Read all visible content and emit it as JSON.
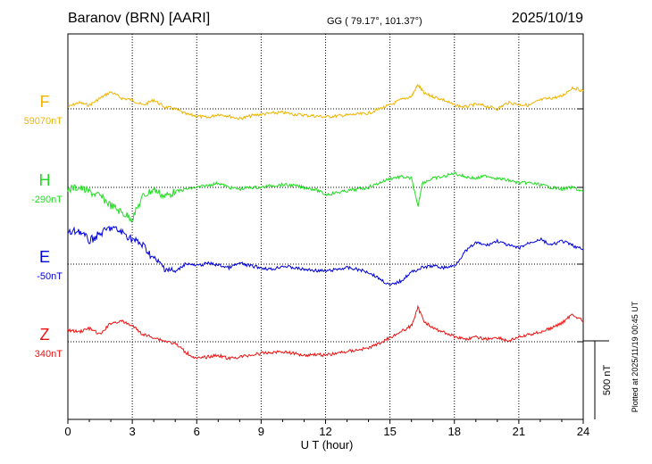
{
  "header": {
    "station": "Baranov (BRN)  [AARI]",
    "coords": "GG ( 79.17°, 101.37°)",
    "date": "2025/10/19"
  },
  "side_note": "Plotted at 2025/11/19 00:45 UT",
  "chart_data": {
    "type": "line",
    "xlabel": "U T (hour)",
    "xlim": [
      0,
      24
    ],
    "x_ticks": [
      "0",
      "3",
      "6",
      "9",
      "12",
      "15",
      "18",
      "21",
      "24"
    ],
    "scale_bar_label": "500 nT",
    "series": [
      {
        "name": "F",
        "baseline_label": "59070nT",
        "color": "#f0b400",
        "points": [
          [
            0,
            120
          ],
          [
            0.5,
            115
          ],
          [
            1,
            118
          ],
          [
            1.5,
            110
          ],
          [
            2,
            103
          ],
          [
            2.5,
            110
          ],
          [
            3,
            112
          ],
          [
            3.5,
            118
          ],
          [
            4,
            112
          ],
          [
            4.5,
            120
          ],
          [
            5,
            122
          ],
          [
            5.5,
            128
          ],
          [
            6,
            130
          ],
          [
            6.5,
            132
          ],
          [
            7,
            128
          ],
          [
            7.5,
            130
          ],
          [
            8,
            133
          ],
          [
            8.5,
            130
          ],
          [
            9,
            128
          ],
          [
            9.5,
            127
          ],
          [
            10,
            126
          ],
          [
            10.5,
            128
          ],
          [
            11,
            129
          ],
          [
            11.5,
            130
          ],
          [
            12,
            131
          ],
          [
            12.5,
            130
          ],
          [
            13,
            129
          ],
          [
            13.5,
            128
          ],
          [
            14,
            127
          ],
          [
            14.5,
            122
          ],
          [
            15,
            118
          ],
          [
            15.5,
            112
          ],
          [
            16,
            108
          ],
          [
            16.3,
            95
          ],
          [
            16.6,
            105
          ],
          [
            17,
            108
          ],
          [
            17.5,
            112
          ],
          [
            18,
            118
          ],
          [
            18.5,
            120
          ],
          [
            19,
            117
          ],
          [
            19.5,
            119
          ],
          [
            20,
            122
          ],
          [
            20.5,
            115
          ],
          [
            21,
            117
          ],
          [
            21.5,
            118
          ],
          [
            22,
            112
          ],
          [
            22.5,
            110
          ],
          [
            23,
            108
          ],
          [
            23.5,
            98
          ],
          [
            24,
            102
          ]
        ]
      },
      {
        "name": "H",
        "baseline_label": "-290nT",
        "color": "#22dd22",
        "points": [
          [
            0,
            212
          ],
          [
            0.5,
            210
          ],
          [
            1,
            215
          ],
          [
            1.5,
            220
          ],
          [
            2,
            230
          ],
          [
            2.5,
            238
          ],
          [
            3,
            245
          ],
          [
            3.5,
            220
          ],
          [
            4,
            212
          ],
          [
            4.5,
            220
          ],
          [
            5,
            215
          ],
          [
            5.5,
            212
          ],
          [
            6,
            210
          ],
          [
            6.5,
            208
          ],
          [
            7,
            205
          ],
          [
            7.5,
            210
          ],
          [
            8,
            212
          ],
          [
            8.5,
            210
          ],
          [
            9,
            210
          ],
          [
            9.5,
            208
          ],
          [
            10,
            207
          ],
          [
            10.5,
            208
          ],
          [
            11,
            210
          ],
          [
            11.5,
            212
          ],
          [
            12,
            218
          ],
          [
            12.5,
            216
          ],
          [
            13,
            214
          ],
          [
            13.5,
            212
          ],
          [
            14,
            210
          ],
          [
            14.5,
            205
          ],
          [
            15,
            200
          ],
          [
            15.5,
            198
          ],
          [
            16,
            200
          ],
          [
            16.3,
            232
          ],
          [
            16.5,
            205
          ],
          [
            17,
            200
          ],
          [
            17.5,
            198
          ],
          [
            18,
            194
          ],
          [
            18.5,
            198
          ],
          [
            19,
            200
          ],
          [
            19.5,
            197
          ],
          [
            20,
            200
          ],
          [
            20.5,
            202
          ],
          [
            21,
            205
          ],
          [
            21.5,
            205
          ],
          [
            22,
            207
          ],
          [
            22.5,
            210
          ],
          [
            23,
            212
          ],
          [
            23.5,
            210
          ],
          [
            24,
            215
          ]
        ]
      },
      {
        "name": "E",
        "baseline_label": "-50nT",
        "color": "#0000dd",
        "points": [
          [
            0,
            262
          ],
          [
            0.5,
            258
          ],
          [
            1,
            270
          ],
          [
            1.5,
            262
          ],
          [
            2,
            255
          ],
          [
            2.5,
            260
          ],
          [
            3,
            268
          ],
          [
            3.5,
            275
          ],
          [
            4,
            290
          ],
          [
            4.5,
            300
          ],
          [
            5,
            305
          ],
          [
            5.5,
            295
          ],
          [
            6,
            298
          ],
          [
            6.5,
            295
          ],
          [
            7,
            297
          ],
          [
            7.5,
            300
          ],
          [
            8,
            295
          ],
          [
            8.5,
            298
          ],
          [
            9,
            300
          ],
          [
            9.5,
            302
          ],
          [
            10,
            298
          ],
          [
            10.5,
            300
          ],
          [
            11,
            302
          ],
          [
            11.5,
            303
          ],
          [
            12,
            304
          ],
          [
            12.5,
            302
          ],
          [
            13,
            300
          ],
          [
            13.5,
            302
          ],
          [
            14,
            305
          ],
          [
            14.5,
            312
          ],
          [
            15,
            320
          ],
          [
            15.5,
            315
          ],
          [
            16,
            305
          ],
          [
            16.5,
            300
          ],
          [
            17,
            298
          ],
          [
            17.5,
            300
          ],
          [
            18,
            298
          ],
          [
            18.5,
            282
          ],
          [
            19,
            272
          ],
          [
            19.5,
            275
          ],
          [
            20,
            270
          ],
          [
            20.5,
            275
          ],
          [
            21,
            278
          ],
          [
            21.5,
            272
          ],
          [
            22,
            268
          ],
          [
            22.5,
            275
          ],
          [
            23,
            270
          ],
          [
            23.5,
            275
          ],
          [
            24,
            280
          ]
        ]
      },
      {
        "name": "Z",
        "baseline_label": "340nT",
        "color": "#ee1111",
        "points": [
          [
            0,
            370
          ],
          [
            0.5,
            372
          ],
          [
            1,
            368
          ],
          [
            1.5,
            375
          ],
          [
            2,
            362
          ],
          [
            2.5,
            360
          ],
          [
            3,
            365
          ],
          [
            3.5,
            375
          ],
          [
            4,
            378
          ],
          [
            4.5,
            382
          ],
          [
            5,
            385
          ],
          [
            5.5,
            395
          ],
          [
            6,
            402
          ],
          [
            6.5,
            400
          ],
          [
            7,
            398
          ],
          [
            7.5,
            402
          ],
          [
            8,
            400
          ],
          [
            8.5,
            398
          ],
          [
            9,
            396
          ],
          [
            9.5,
            395
          ],
          [
            10,
            394
          ],
          [
            10.5,
            396
          ],
          [
            11,
            398
          ],
          [
            11.5,
            397
          ],
          [
            12,
            398
          ],
          [
            12.5,
            396
          ],
          [
            13,
            394
          ],
          [
            13.5,
            392
          ],
          [
            14,
            390
          ],
          [
            14.5,
            385
          ],
          [
            15,
            378
          ],
          [
            15.5,
            372
          ],
          [
            16,
            365
          ],
          [
            16.3,
            345
          ],
          [
            16.6,
            360
          ],
          [
            17,
            368
          ],
          [
            17.5,
            372
          ],
          [
            18,
            377
          ],
          [
            18.5,
            380
          ],
          [
            19,
            378
          ],
          [
            19.5,
            380
          ],
          [
            20,
            378
          ],
          [
            20.5,
            382
          ],
          [
            21,
            378
          ],
          [
            21.5,
            375
          ],
          [
            22,
            372
          ],
          [
            22.5,
            368
          ],
          [
            23,
            362
          ],
          [
            23.5,
            352
          ],
          [
            24,
            360
          ]
        ]
      }
    ]
  }
}
